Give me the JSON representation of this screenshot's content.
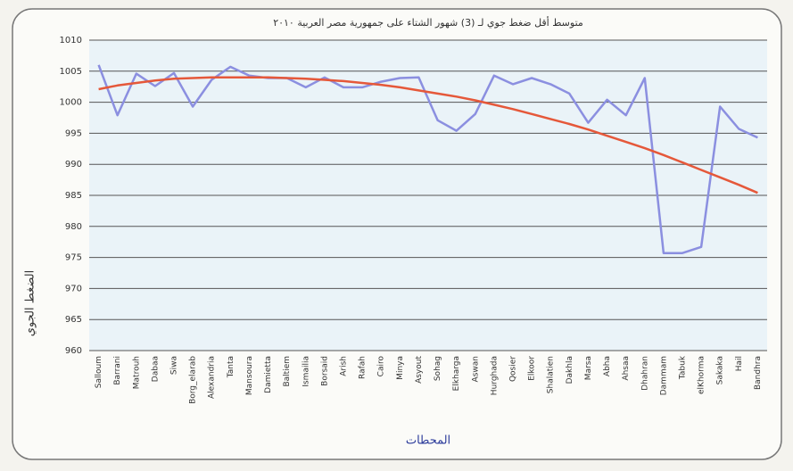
{
  "chart_data": {
    "type": "line",
    "title": "متوسط أقل ضغط جوي لـ (3) شهور الشتاء على جمهورية مصر العربية ٢٠١٠",
    "x_label": "المحطات",
    "y_label": "الضغط الجوي",
    "categories": [
      "Salloum",
      "Barrani",
      "Matrouh",
      "Dabaa",
      "Siwa",
      "Borg_elarab",
      "Alexandria",
      "Tanta",
      "Mansoura",
      "Damietta",
      "Baltiem",
      "Ismailia",
      "Borsaid",
      "Arish",
      "Rafah",
      "Cairo",
      "Minya",
      "Asyout",
      "Sohag",
      "Elkharga",
      "Aswan",
      "Hurghada",
      "Qosier",
      "Elkoor",
      "Shalatien",
      "Dakhla",
      "Marsa",
      "Abha",
      "Ahsaa",
      "Dhahran",
      "Dammam",
      "Tabuk",
      "elKhorma",
      "Sakaka",
      "Hail",
      "Bandhra"
    ],
    "series": [
      {
        "color": "#8b8fe0",
        "values": [
          1006,
          997.9,
          1004.6,
          1002.6,
          1004.7,
          999.3,
          1003.6,
          1005.7,
          1004.3,
          1003.9,
          1003.9,
          1002.4,
          1004,
          1002.4,
          1002.4,
          1003.3,
          1003.9,
          1004,
          997.1,
          995.4,
          998.1,
          1004.3,
          1002.9,
          1003.9,
          1002.9,
          1001.4,
          996.7,
          1000.4,
          997.9,
          1003.9,
          975.7,
          975.7,
          976.7,
          999.3,
          995.7,
          994.3
        ]
      },
      {
        "color": "#e5583a",
        "values": [
          1002.1,
          1002.7,
          1003.1,
          1003.5,
          1003.8,
          1003.9,
          1004,
          1004,
          1004,
          1004,
          1003.9,
          1003.8,
          1003.6,
          1003.4,
          1003.1,
          1002.8,
          1002.4,
          1001.9,
          1001.4,
          1000.9,
          1000.3,
          999.6,
          998.9,
          998.1,
          997.3,
          996.5,
          995.6,
          994.6,
          993.6,
          992.6,
          991.5,
          990.3,
          989.1,
          987.9,
          986.7,
          985.4
        ]
      }
    ],
    "ylim": [
      960,
      1010
    ],
    "yticks": [
      960,
      965,
      970,
      975,
      980,
      985,
      990,
      995,
      1000,
      1005,
      1010
    ],
    "grid": true
  }
}
